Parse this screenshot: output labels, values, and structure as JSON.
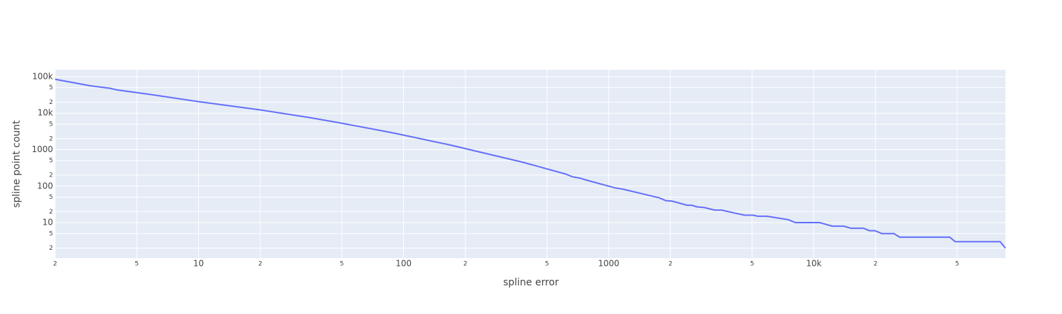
{
  "chart_data": {
    "type": "line",
    "x_label": "spline error",
    "y_label": "spline point count",
    "x_log": true,
    "y_log": true,
    "grid": true,
    "color": "#636efa",
    "x": [
      2,
      2.94,
      3.72,
      3.96,
      5.86,
      10,
      20,
      34.8,
      50,
      89,
      167,
      381,
      618,
      667,
      727,
      787,
      1080,
      1170,
      1760,
      1900,
      2030,
      2410,
      2540,
      2700,
      2920,
      3290,
      3560,
      4160,
      4600,
      5050,
      5330,
      5900,
      7520,
      8140,
      10700,
      12300,
      14000,
      15200,
      17500,
      18700,
      19900,
      21500,
      24600,
      26200,
      46000,
      48900,
      81000,
      86000
    ],
    "values": [
      85000,
      57000,
      48000,
      44000,
      32400,
      20800,
      12300,
      7600,
      5300,
      2880,
      1360,
      453,
      214,
      180,
      165,
      144,
      89,
      83,
      48,
      40,
      39,
      30,
      30,
      27,
      26,
      22,
      22,
      18,
      16,
      16,
      15,
      15,
      12,
      10,
      10,
      8,
      8,
      7,
      7,
      6,
      6,
      5,
      5,
      4,
      4,
      3,
      3,
      2
    ],
    "xlim": [
      2,
      86000
    ],
    "ylim": [
      1.06,
      155000
    ],
    "xticks": [
      2,
      5,
      10,
      {
        "value": 20,
        "label": "2"
      },
      {
        "value": 50,
        "label": "5"
      },
      100,
      {
        "value": 200,
        "label": "2"
      },
      {
        "value": 500,
        "label": "5"
      },
      1000,
      {
        "value": 2000,
        "label": "2"
      },
      {
        "value": 5000,
        "label": "5"
      },
      {
        "value": 10000,
        "label": "10k"
      },
      {
        "value": 20000,
        "label": "2"
      },
      {
        "value": 50000,
        "label": "5"
      }
    ],
    "yticks": [
      2,
      5,
      10,
      {
        "value": 20,
        "label": "2"
      },
      {
        "value": 50,
        "label": "5"
      },
      100,
      {
        "value": 200,
        "label": "2"
      },
      {
        "value": 500,
        "label": "5"
      },
      1000,
      {
        "value": 2000,
        "label": "2"
      },
      {
        "value": 5000,
        "label": "5"
      },
      {
        "value": 10000,
        "label": "10k"
      },
      {
        "value": 20000,
        "label": "2"
      },
      {
        "value": 50000,
        "label": "5"
      },
      {
        "value": 100000,
        "label": "100k"
      }
    ]
  }
}
